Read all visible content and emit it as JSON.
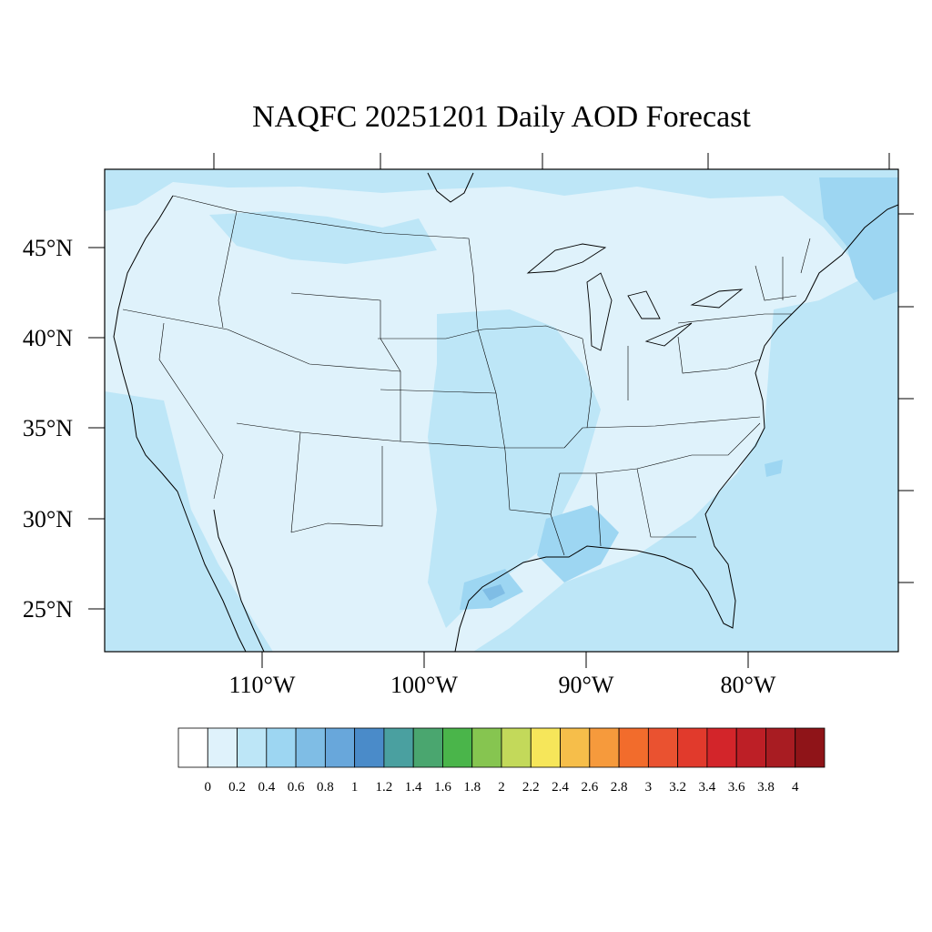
{
  "title": "NAQFC 20251201 Daily AOD Forecast",
  "map": {
    "projection": "Lambert conformal (CONUS)",
    "background_color": "#dff2fb",
    "lat_labels": [
      "45°N",
      "40°N",
      "35°N",
      "30°N",
      "25°N"
    ],
    "lon_labels": [
      "110°W",
      "100°W",
      "90°W",
      "80°W"
    ]
  },
  "colorbar": {
    "labels": [
      "0",
      "0.2",
      "0.4",
      "0.6",
      "0.8",
      "1",
      "1.2",
      "1.4",
      "1.6",
      "1.8",
      "2",
      "2.2",
      "2.4",
      "2.6",
      "2.8",
      "3",
      "3.2",
      "3.4",
      "3.6",
      "3.8",
      "4"
    ],
    "colors": [
      "#ffffff",
      "#dff2fb",
      "#bde6f7",
      "#9dd6f2",
      "#7fbde5",
      "#68a7db",
      "#4a8bc9",
      "#4aa0a0",
      "#4aa66f",
      "#4ab54a",
      "#86c550",
      "#c3d95a",
      "#f6e65a",
      "#f6be4a",
      "#f69a3c",
      "#f26c2c",
      "#ea5230",
      "#e13a2c",
      "#d3252a",
      "#bd1f26",
      "#a81c22",
      "#8f1418"
    ]
  }
}
